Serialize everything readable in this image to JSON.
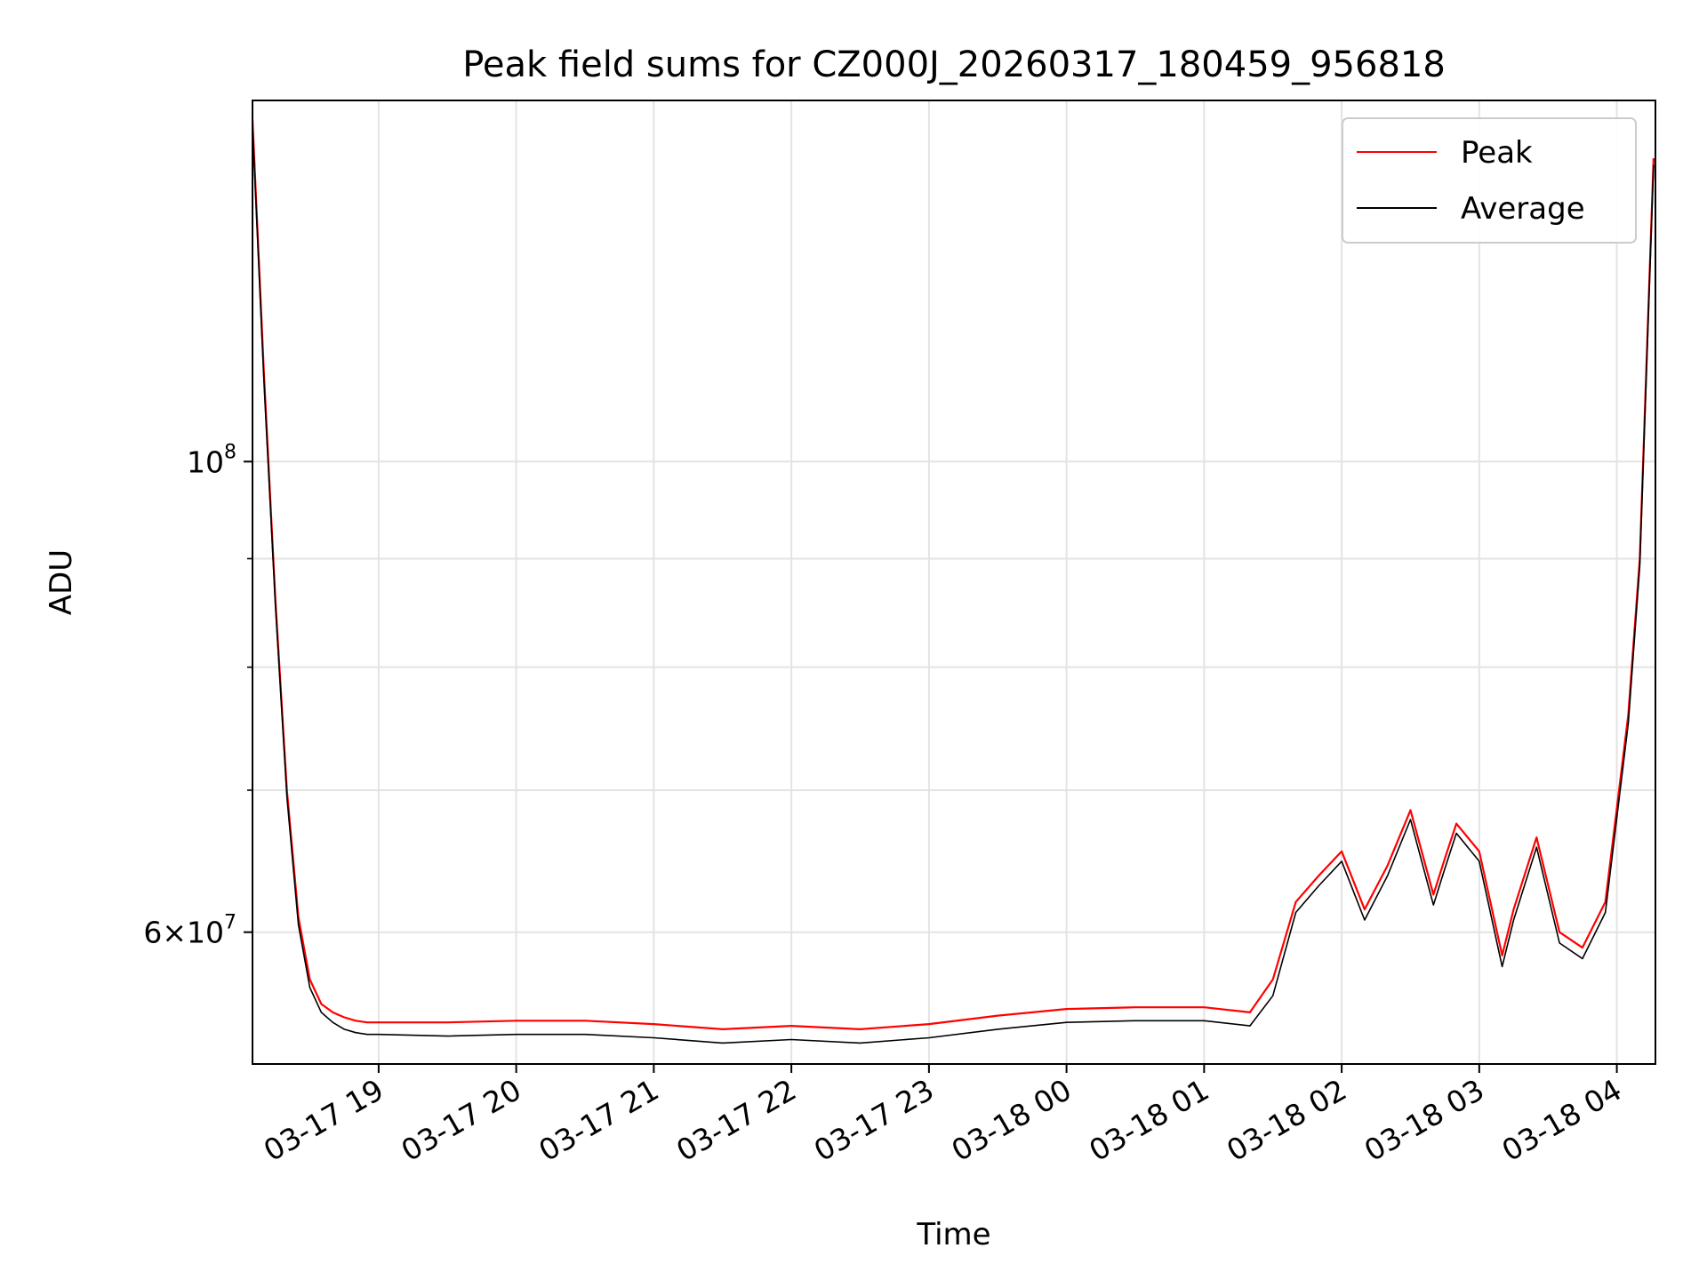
{
  "chart_data": {
    "type": "line",
    "title": "Peak field sums for CZ000J_20260317_180459_956818",
    "xlabel": "Time",
    "ylabel": "ADU",
    "y_scale": "log",
    "ylim": [
      52000000,
      148000000
    ],
    "xlim": [
      "2026-03-17 18:04:59",
      "2026-03-18 04:16:50"
    ],
    "grid": true,
    "legend_position": "top-right",
    "x_ticks": [
      {
        "t": "2026-03-17 19:00",
        "label": "03-17 19"
      },
      {
        "t": "2026-03-17 20:00",
        "label": "03-17 20"
      },
      {
        "t": "2026-03-17 21:00",
        "label": "03-17 21"
      },
      {
        "t": "2026-03-17 22:00",
        "label": "03-17 22"
      },
      {
        "t": "2026-03-17 23:00",
        "label": "03-17 23"
      },
      {
        "t": "2026-03-18 00:00",
        "label": "03-18 00"
      },
      {
        "t": "2026-03-18 01:00",
        "label": "03-18 01"
      },
      {
        "t": "2026-03-18 02:00",
        "label": "03-18 02"
      },
      {
        "t": "2026-03-18 03:00",
        "label": "03-18 03"
      },
      {
        "t": "2026-03-18 04:00",
        "label": "03-18 04"
      }
    ],
    "y_ticks_major": [
      {
        "value": 100000000,
        "base": "10",
        "exp": "8"
      },
      {
        "value": 60000000,
        "mantissa": "6",
        "times": "×",
        "base": "10",
        "exp": "7"
      }
    ],
    "y_ticks_minor": [
      70000000,
      80000000,
      90000000
    ],
    "series": [
      {
        "name": "Peak",
        "color": "#ff0000",
        "x": [
          "2026-03-17 18:05",
          "2026-03-17 18:10",
          "2026-03-17 18:15",
          "2026-03-17 18:20",
          "2026-03-17 18:25",
          "2026-03-17 18:30",
          "2026-03-17 18:35",
          "2026-03-17 18:40",
          "2026-03-17 18:45",
          "2026-03-17 18:50",
          "2026-03-17 18:55",
          "2026-03-17 19:00",
          "2026-03-17 19:30",
          "2026-03-17 20:00",
          "2026-03-17 20:30",
          "2026-03-17 21:00",
          "2026-03-17 21:30",
          "2026-03-17 22:00",
          "2026-03-17 22:30",
          "2026-03-17 23:00",
          "2026-03-17 23:30",
          "2026-03-18 00:00",
          "2026-03-18 00:30",
          "2026-03-18 01:00",
          "2026-03-18 01:20",
          "2026-03-18 01:30",
          "2026-03-18 01:40",
          "2026-03-18 01:50",
          "2026-03-18 02:00",
          "2026-03-18 02:10",
          "2026-03-18 02:20",
          "2026-03-18 02:30",
          "2026-03-18 02:40",
          "2026-03-18 02:45",
          "2026-03-18 02:50",
          "2026-03-18 03:00",
          "2026-03-18 03:10",
          "2026-03-18 03:15",
          "2026-03-18 03:25",
          "2026-03-18 03:35",
          "2026-03-18 03:45",
          "2026-03-18 03:55",
          "2026-03-18 04:05",
          "2026-03-18 04:10",
          "2026-03-18 04:16"
        ],
        "y": [
          145000000,
          110000000,
          86000000,
          70000000,
          61000000,
          57000000,
          55500000,
          55000000,
          54700000,
          54500000,
          54400000,
          54400000,
          54400000,
          54500000,
          54500000,
          54300000,
          54000000,
          54200000,
          54000000,
          54300000,
          54800000,
          55200000,
          55300000,
          55300000,
          55000000,
          57000000,
          62000000,
          63800000,
          65500000,
          61500000,
          64500000,
          68500000,
          62500000,
          65000000,
          67500000,
          65500000,
          58500000,
          61500000,
          66500000,
          60000000,
          59000000,
          62000000,
          76000000,
          90000000,
          139000000
        ]
      },
      {
        "name": "Average",
        "color": "#000000",
        "x": [
          "2026-03-17 18:05",
          "2026-03-17 18:10",
          "2026-03-17 18:15",
          "2026-03-17 18:20",
          "2026-03-17 18:25",
          "2026-03-17 18:30",
          "2026-03-17 18:35",
          "2026-03-17 18:40",
          "2026-03-17 18:45",
          "2026-03-17 18:50",
          "2026-03-17 18:55",
          "2026-03-17 19:00",
          "2026-03-17 19:30",
          "2026-03-17 20:00",
          "2026-03-17 20:30",
          "2026-03-17 21:00",
          "2026-03-17 21:30",
          "2026-03-17 22:00",
          "2026-03-17 22:30",
          "2026-03-17 23:00",
          "2026-03-17 23:30",
          "2026-03-18 00:00",
          "2026-03-18 00:30",
          "2026-03-18 01:00",
          "2026-03-18 01:20",
          "2026-03-18 01:30",
          "2026-03-18 01:40",
          "2026-03-18 01:50",
          "2026-03-18 02:00",
          "2026-03-18 02:10",
          "2026-03-18 02:20",
          "2026-03-18 02:30",
          "2026-03-18 02:40",
          "2026-03-18 02:45",
          "2026-03-18 02:50",
          "2026-03-18 03:00",
          "2026-03-18 03:10",
          "2026-03-18 03:15",
          "2026-03-18 03:25",
          "2026-03-18 03:35",
          "2026-03-18 03:45",
          "2026-03-18 03:55",
          "2026-03-18 04:05",
          "2026-03-18 04:10",
          "2026-03-18 04:16"
        ],
        "y": [
          144000000,
          109000000,
          85500000,
          69500000,
          60500000,
          56500000,
          55000000,
          54400000,
          54000000,
          53800000,
          53700000,
          53700000,
          53600000,
          53700000,
          53700000,
          53500000,
          53200000,
          53400000,
          53200000,
          53500000,
          54000000,
          54400000,
          54500000,
          54500000,
          54200000,
          56000000,
          61300000,
          63100000,
          64800000,
          60800000,
          63800000,
          67800000,
          61800000,
          64300000,
          66800000,
          64800000,
          57800000,
          60800000,
          65800000,
          59300000,
          58300000,
          61300000,
          75300000,
          89300000,
          138000000
        ]
      }
    ]
  }
}
